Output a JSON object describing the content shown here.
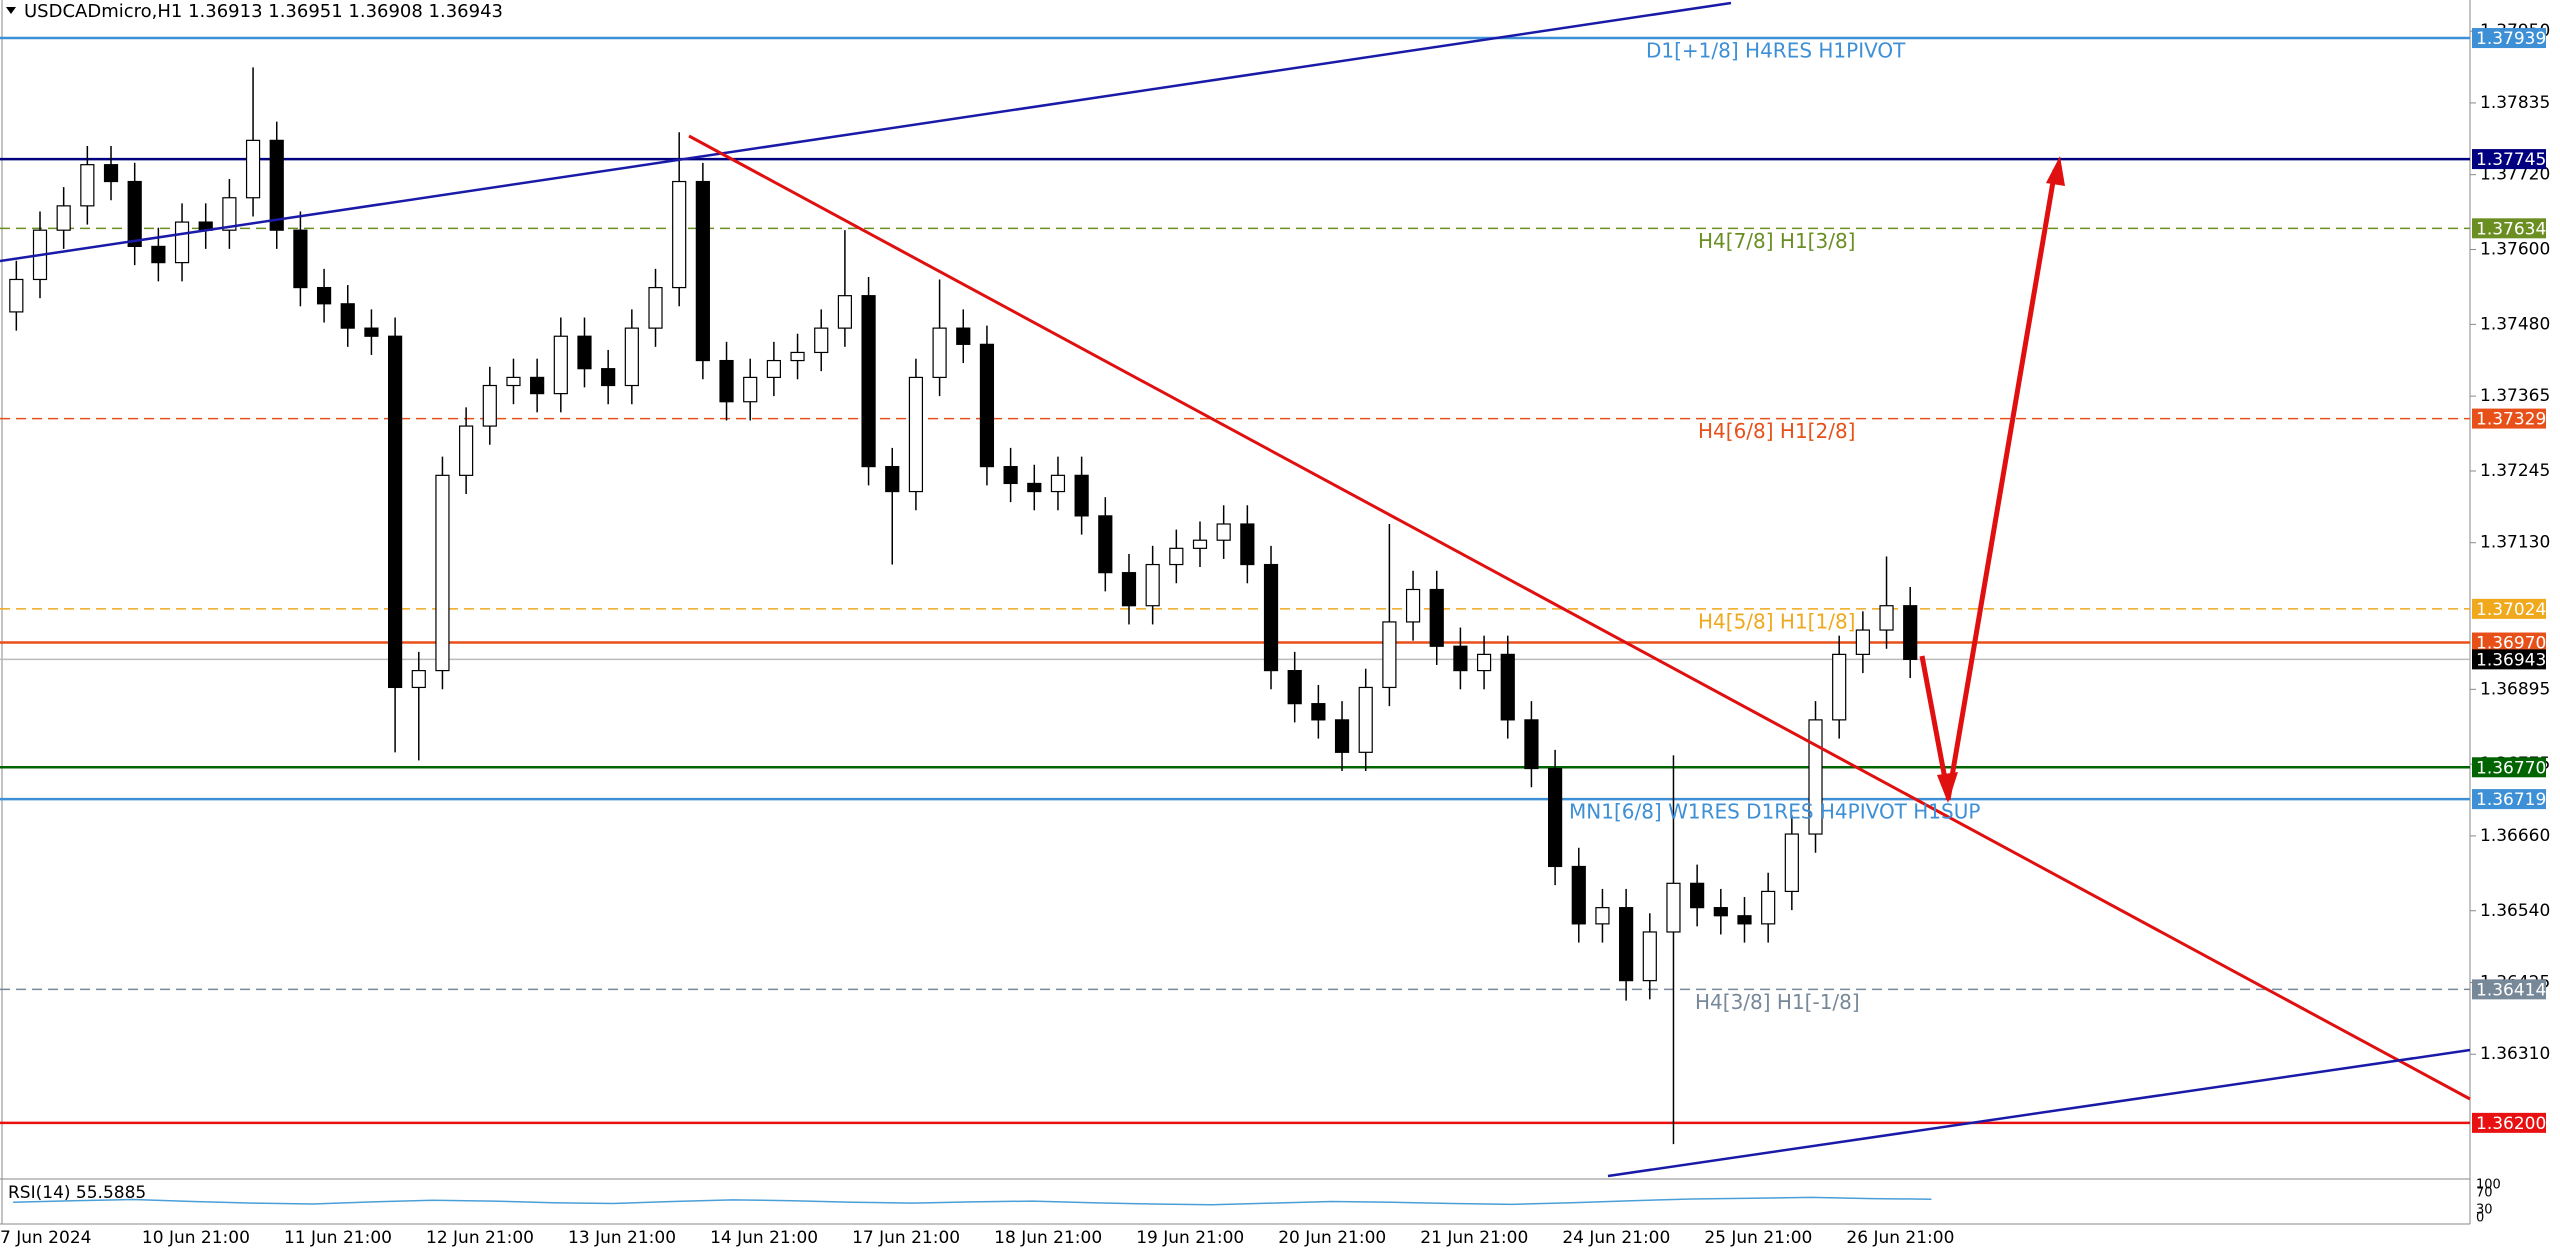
{
  "chart_data": {
    "type": "candlestick",
    "title": "USDCADmicro,H1  1.36913 1.36951 1.36908 1.36943",
    "ylim": [
      1.3611,
      1.38
    ],
    "yticks": [
      {
        "value": 1.3795,
        "label": "1.37950"
      },
      {
        "value": 1.37835,
        "label": "1.37835"
      },
      {
        "value": 1.3772,
        "label": "1.37720"
      },
      {
        "value": 1.376,
        "label": "1.37600"
      },
      {
        "value": 1.3748,
        "label": "1.37480"
      },
      {
        "value": 1.37365,
        "label": "1.37365"
      },
      {
        "value": 1.37245,
        "label": "1.37245"
      },
      {
        "value": 1.3713,
        "label": "1.37130"
      },
      {
        "value": 1.36895,
        "label": "1.36895"
      },
      {
        "value": 1.36775,
        "label": "1.36775"
      },
      {
        "value": 1.3666,
        "label": "1.36660"
      },
      {
        "value": 1.3654,
        "label": "1.36540"
      },
      {
        "value": 1.36425,
        "label": "1.36425"
      },
      {
        "value": 1.3631,
        "label": "1.36310"
      }
    ],
    "xlabels": [
      "7 Jun 2024",
      "10 Jun 21:00",
      "11 Jun 21:00",
      "12 Jun 21:00",
      "13 Jun 21:00",
      "14 Jun 21:00",
      "17 Jun 21:00",
      "18 Jun 21:00",
      "19 Jun 21:00",
      "20 Jun 21:00",
      "21 Jun 21:00",
      "24 Jun 21:00",
      "25 Jun 21:00",
      "26 Jun 21:00"
    ],
    "values": [
      [
        1.375,
        1.37582,
        1.3747,
        1.37552
      ],
      [
        1.37552,
        1.37661,
        1.37522,
        1.37631
      ],
      [
        1.37631,
        1.377,
        1.37601,
        1.3767
      ],
      [
        1.3767,
        1.37766,
        1.3764,
        1.37736
      ],
      [
        1.37736,
        1.37766,
        1.37679,
        1.37709
      ],
      [
        1.37709,
        1.37739,
        1.37575,
        1.37605
      ],
      [
        1.37605,
        1.37635,
        1.37549,
        1.37579
      ],
      [
        1.37579,
        1.37674,
        1.37549,
        1.37644
      ],
      [
        1.37644,
        1.37674,
        1.37601,
        1.37631
      ],
      [
        1.37631,
        1.37713,
        1.37601,
        1.37683
      ],
      [
        1.37683,
        1.37892,
        1.37653,
        1.37775
      ],
      [
        1.37775,
        1.37805,
        1.37601,
        1.37631
      ],
      [
        1.37631,
        1.37661,
        1.37509,
        1.37539
      ],
      [
        1.37539,
        1.37569,
        1.37483,
        1.37513
      ],
      [
        1.37513,
        1.37543,
        1.37444,
        1.37474
      ],
      [
        1.37474,
        1.37504,
        1.37431,
        1.37461
      ],
      [
        1.37461,
        1.37491,
        1.36794,
        1.36898
      ],
      [
        1.36898,
        1.36955,
        1.36781,
        1.36925
      ],
      [
        1.36925,
        1.37268,
        1.36895,
        1.37238
      ],
      [
        1.37238,
        1.37347,
        1.37208,
        1.37317
      ],
      [
        1.37317,
        1.37412,
        1.37287,
        1.37382
      ],
      [
        1.37382,
        1.37425,
        1.37352,
        1.37395
      ],
      [
        1.37395,
        1.37425,
        1.37339,
        1.37369
      ],
      [
        1.37369,
        1.37491,
        1.37339,
        1.37461
      ],
      [
        1.37461,
        1.37491,
        1.37379,
        1.37409
      ],
      [
        1.37409,
        1.37439,
        1.37352,
        1.37382
      ],
      [
        1.37382,
        1.37504,
        1.37352,
        1.37474
      ],
      [
        1.37474,
        1.37569,
        1.37444,
        1.37539
      ],
      [
        1.37539,
        1.37788,
        1.37509,
        1.37709
      ],
      [
        1.37709,
        1.37739,
        1.37392,
        1.37422
      ],
      [
        1.37422,
        1.37452,
        1.37326,
        1.37356
      ],
      [
        1.37356,
        1.37425,
        1.37326,
        1.37395
      ],
      [
        1.37395,
        1.37452,
        1.37365,
        1.37422
      ],
      [
        1.37422,
        1.37465,
        1.37392,
        1.37435
      ],
      [
        1.37435,
        1.37504,
        1.37405,
        1.37474
      ],
      [
        1.37474,
        1.37631,
        1.37444,
        1.37526
      ],
      [
        1.37526,
        1.37556,
        1.37222,
        1.37252
      ],
      [
        1.37252,
        1.37282,
        1.37095,
        1.37212
      ],
      [
        1.37212,
        1.37425,
        1.37182,
        1.37395
      ],
      [
        1.37395,
        1.37552,
        1.37365,
        1.37474
      ],
      [
        1.37474,
        1.37504,
        1.37418,
        1.37448
      ],
      [
        1.37448,
        1.37478,
        1.37222,
        1.37252
      ],
      [
        1.37252,
        1.37282,
        1.37195,
        1.37225
      ],
      [
        1.37225,
        1.37255,
        1.37182,
        1.37212
      ],
      [
        1.37212,
        1.37268,
        1.37182,
        1.37238
      ],
      [
        1.37238,
        1.37268,
        1.37143,
        1.37173
      ],
      [
        1.37173,
        1.37203,
        1.37052,
        1.37082
      ],
      [
        1.37082,
        1.37112,
        1.36999,
        1.37029
      ],
      [
        1.37029,
        1.37125,
        1.36999,
        1.37095
      ],
      [
        1.37095,
        1.37151,
        1.37065,
        1.37121
      ],
      [
        1.37121,
        1.37164,
        1.37091,
        1.37134
      ],
      [
        1.37134,
        1.3719,
        1.37104,
        1.3716
      ],
      [
        1.3716,
        1.3719,
        1.37065,
        1.37095
      ],
      [
        1.37095,
        1.37125,
        1.36895,
        1.36925
      ],
      [
        1.36925,
        1.36955,
        1.36842,
        1.36872
      ],
      [
        1.36872,
        1.36902,
        1.36816,
        1.36846
      ],
      [
        1.36846,
        1.36876,
        1.36764,
        1.36794
      ],
      [
        1.36794,
        1.36928,
        1.36764,
        1.36898
      ],
      [
        1.36898,
        1.3716,
        1.36868,
        1.37003
      ],
      [
        1.37003,
        1.37085,
        1.36973,
        1.37055
      ],
      [
        1.37055,
        1.37085,
        1.36934,
        1.36964
      ],
      [
        1.36964,
        1.36994,
        1.36895,
        1.36925
      ],
      [
        1.36925,
        1.36981,
        1.36895,
        1.36951
      ],
      [
        1.36951,
        1.36981,
        1.36816,
        1.36846
      ],
      [
        1.36846,
        1.36876,
        1.36738,
        1.36768
      ],
      [
        1.36768,
        1.36798,
        1.36581,
        1.36611
      ],
      [
        1.36611,
        1.36641,
        1.36489,
        1.36519
      ],
      [
        1.36519,
        1.36575,
        1.36489,
        1.36545
      ],
      [
        1.36545,
        1.36575,
        1.36396,
        1.36428
      ],
      [
        1.36428,
        1.36536,
        1.36398,
        1.36506
      ],
      [
        1.36506,
        1.36789,
        1.36166,
        1.36584
      ],
      [
        1.36584,
        1.36614,
        1.36515,
        1.36545
      ],
      [
        1.36545,
        1.36575,
        1.36502,
        1.36532
      ],
      [
        1.36532,
        1.36562,
        1.36489,
        1.36519
      ],
      [
        1.36519,
        1.36601,
        1.36489,
        1.36571
      ],
      [
        1.36571,
        1.36693,
        1.36541,
        1.36663
      ],
      [
        1.36663,
        1.36876,
        1.36633,
        1.36846
      ],
      [
        1.36846,
        1.36981,
        1.36816,
        1.36951
      ],
      [
        1.36951,
        1.3702,
        1.36921,
        1.3699
      ],
      [
        1.3699,
        1.37108,
        1.3696,
        1.37029
      ],
      [
        1.37029,
        1.37059,
        1.36913,
        1.36943
      ]
    ],
    "levels": [
      {
        "value": 1.37939,
        "tag": "1.37939",
        "color": "#3d8fd6",
        "dash": false,
        "text": "D1[+1/8] H4RES H1PIVOT"
      },
      {
        "value": 1.37745,
        "tag": "1.37745",
        "color": "#000080",
        "dash": false
      },
      {
        "value": 1.37634,
        "tag": "1.37634",
        "color": "#6b8e23",
        "dash": true,
        "text": "H4[7/8] H1[3/8]"
      },
      {
        "value": 1.37329,
        "tag": "1.37329",
        "color": "#e8501a",
        "dash": true,
        "text": "H4[6/8] H1[2/8]"
      },
      {
        "value": 1.37024,
        "tag": "1.37024",
        "color": "#f0a81c",
        "dash": true,
        "text": "H4[5/8] H1[1/8]"
      },
      {
        "value": 1.3697,
        "tag": "1.36970",
        "color": "#e8501a",
        "dash": false
      },
      {
        "value": 1.36943,
        "tag": "1.36943",
        "color": "#000000",
        "dash": false
      },
      {
        "value": 1.3677,
        "tag": "1.36770",
        "color": "#006400",
        "dash": false
      },
      {
        "value": 1.36719,
        "tag": "1.36719",
        "color": "#3d8fd6",
        "dash": false,
        "text": "MN1[6/8] W1RES D1RES H4PIVOT H1SUP"
      },
      {
        "value": 1.36414,
        "tag": "1.36414",
        "color": "#778899",
        "dash": true,
        "text": "H4[3/8] H1[-1/8]"
      },
      {
        "value": 1.362,
        "tag": "1.36200",
        "color": "#e81010",
        "dash": false
      }
    ],
    "rsi": {
      "label": "RSI(14) 55.5885",
      "ylim": [
        0,
        100
      ],
      "axis_labels": [
        "100",
        "70",
        "30",
        "0"
      ],
      "values": [
        48,
        52,
        55,
        50,
        46,
        44,
        49,
        53,
        51,
        47,
        45,
        50,
        54,
        52,
        48,
        46,
        49,
        51,
        47,
        44,
        42,
        46,
        50,
        48,
        45,
        43,
        47,
        52,
        56,
        58,
        60,
        57,
        55.5885
      ]
    }
  }
}
